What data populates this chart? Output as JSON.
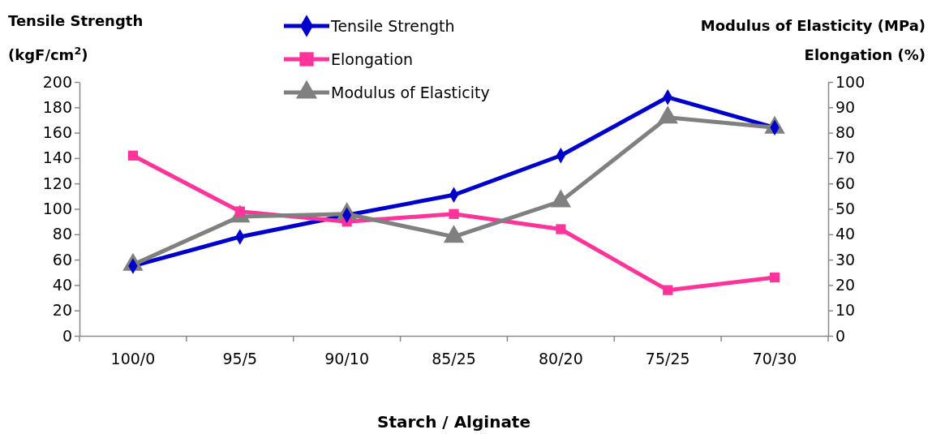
{
  "chart_data": {
    "type": "line",
    "xlabel": "Starch / Alginate",
    "ylabel": "Tensile Strength\n(kgF/cm$^{2}$)",
    "y2label": "Modulus of Elasticity (MPa)\nElongation (%)",
    "categories": [
      "100/0",
      "95/5",
      "90/10",
      "85/25",
      "80/20",
      "75/25",
      "70/30"
    ],
    "ylim": [
      0,
      200
    ],
    "yticks": [
      0,
      20,
      40,
      60,
      80,
      100,
      120,
      140,
      160,
      180,
      200
    ],
    "y2lim": [
      0,
      100
    ],
    "y2ticks": [
      0,
      10,
      20,
      30,
      40,
      50,
      60,
      70,
      80,
      90,
      100
    ],
    "grid": false,
    "legend": "top",
    "series": [
      {
        "name": "Tensile Strength",
        "color": "#0000cc",
        "marker": "diamond",
        "values": [
          55,
          78,
          95,
          111,
          142,
          188,
          164
        ]
      },
      {
        "name": "Elongation",
        "color": "#ff3399",
        "marker": "square",
        "axis": "y2",
        "values": [
          71,
          49,
          45,
          48,
          42,
          18,
          23
        ]
      },
      {
        "name": "Modulus of Elasticity",
        "color": "#808080",
        "marker": "triangle",
        "axis": "y2",
        "values": [
          28,
          47,
          48,
          39,
          53,
          86,
          82
        ]
      }
    ]
  }
}
